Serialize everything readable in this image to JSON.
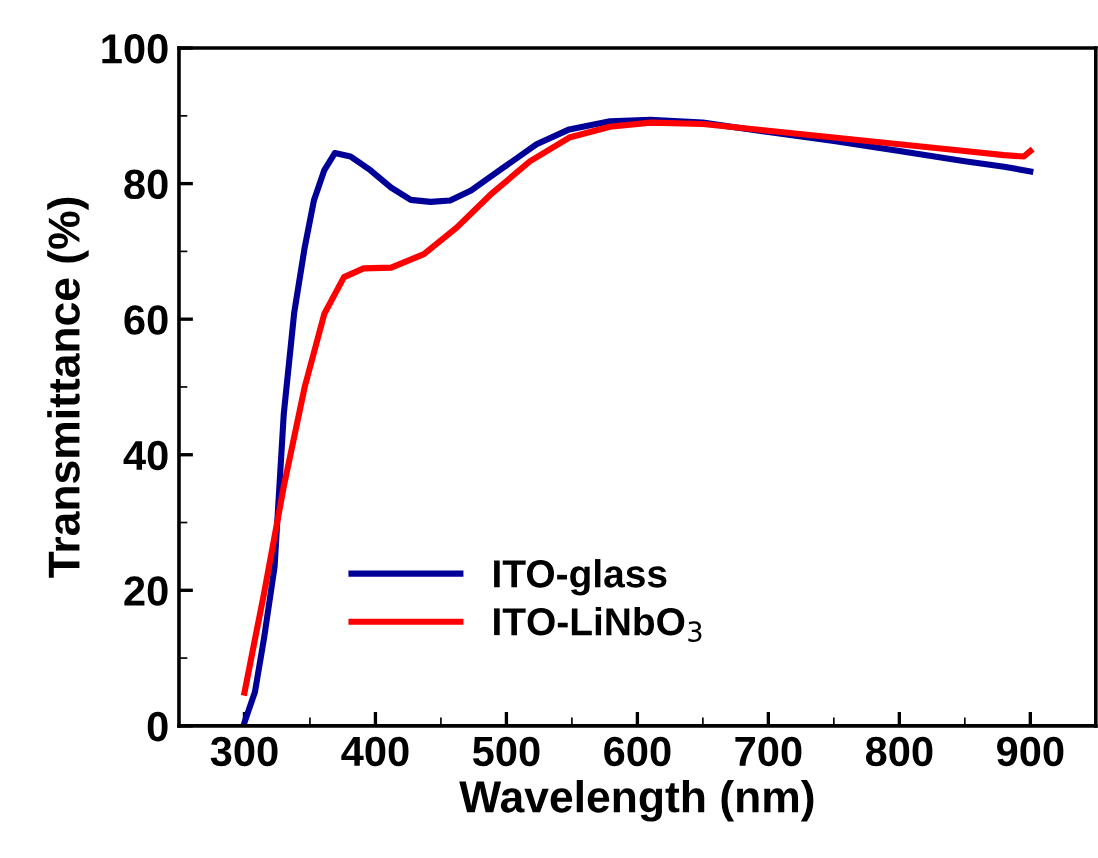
{
  "chart_data": {
    "type": "line",
    "xlabel": "Wavelength (nm)",
    "ylabel": "Transmittance (%)",
    "xlim": [
      250,
      950
    ],
    "ylim": [
      0,
      100
    ],
    "xticks": [
      300,
      400,
      500,
      600,
      700,
      800,
      900
    ],
    "yticks": [
      0,
      20,
      40,
      60,
      80,
      100
    ],
    "grid": false,
    "legend": "lower left",
    "marker": "none",
    "line_style": "solid",
    "series": [
      {
        "name": "ITO-glass",
        "color": "#000099",
        "x": [
          300,
          308,
          315,
          323,
          330,
          338,
          346,
          353,
          361,
          369,
          381,
          396,
          412,
          427,
          442,
          457,
          473,
          498,
          523,
          548,
          579,
          610,
          650,
          700,
          750,
          800,
          850,
          880,
          900
        ],
        "values": [
          0.5,
          5,
          13,
          23.5,
          46,
          61,
          70.6,
          77.5,
          82,
          84.5,
          84,
          82,
          79.4,
          77.6,
          77.3,
          77.5,
          79,
          82.4,
          85.8,
          88,
          89.2,
          89.4,
          89,
          87.6,
          86.3,
          84.8,
          83.3,
          82.5,
          81.8
        ]
      },
      {
        "name": "ITO-LiNbO$_{3}$",
        "color": "#ff0000",
        "x": [
          300,
          315,
          330,
          346,
          361,
          376,
          391,
          412,
          437,
          462,
          488,
          518,
          548,
          579,
          610,
          650,
          700,
          750,
          800,
          850,
          880,
          895,
          900
        ],
        "values": [
          4.9,
          19.6,
          35.3,
          50,
          60.8,
          66.2,
          67.5,
          67.6,
          69.6,
          73.5,
          78.4,
          83.3,
          86.8,
          88.4,
          89,
          88.8,
          87.8,
          86.8,
          85.8,
          84.8,
          84.2,
          84,
          84.8
        ]
      }
    ]
  }
}
